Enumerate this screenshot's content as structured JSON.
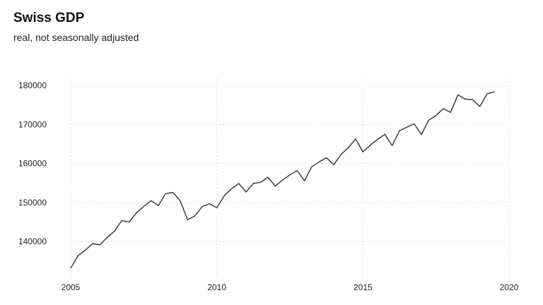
{
  "chart_data": {
    "type": "line",
    "title": "Swiss GDP",
    "subtitle": "real, not seasonally adjusted",
    "xlabel": "",
    "ylabel": "",
    "xlim": [
      2005,
      2020
    ],
    "ylim": [
      131000,
      182000
    ],
    "x_ticks": [
      2005,
      2010,
      2015,
      2020
    ],
    "y_ticks": [
      140000,
      150000,
      160000,
      170000,
      180000
    ],
    "grid": true,
    "legend": "none",
    "line_color": "#333333",
    "series": [
      {
        "x": [
          2005.0,
          2005.25,
          2005.5,
          2005.75,
          2006.0,
          2006.25,
          2006.5,
          2006.75,
          2007.0,
          2007.25,
          2007.5,
          2007.75,
          2008.0,
          2008.25,
          2008.5,
          2008.75,
          2009.0,
          2009.25,
          2009.5,
          2009.75,
          2010.0,
          2010.25,
          2010.5,
          2010.75,
          2011.0,
          2011.25,
          2011.5,
          2011.75,
          2012.0,
          2012.25,
          2012.5,
          2012.75,
          2013.0,
          2013.25,
          2013.5,
          2013.75,
          2014.0,
          2014.25,
          2014.5,
          2014.75,
          2015.0,
          2015.25,
          2015.5,
          2015.75,
          2016.0,
          2016.25,
          2016.5,
          2016.75,
          2017.0,
          2017.25,
          2017.5,
          2017.75,
          2018.0,
          2018.25,
          2018.5,
          2018.75,
          2019.0,
          2019.25,
          2019.5
        ],
        "values": [
          133200,
          136400,
          137800,
          139500,
          139200,
          141100,
          142700,
          145400,
          145000,
          147400,
          149000,
          150500,
          149200,
          152300,
          152600,
          150400,
          145600,
          146600,
          149000,
          149700,
          148700,
          151700,
          153500,
          154900,
          152700,
          154900,
          155200,
          156500,
          154200,
          155800,
          157100,
          158200,
          155600,
          159200,
          160400,
          161500,
          159700,
          162300,
          164100,
          166300,
          163000,
          164700,
          166200,
          167500,
          164600,
          168400,
          169300,
          170200,
          167400,
          171100,
          172300,
          174100,
          173100,
          177600,
          176500,
          176400,
          174600,
          177900,
          178400
        ]
      }
    ]
  }
}
